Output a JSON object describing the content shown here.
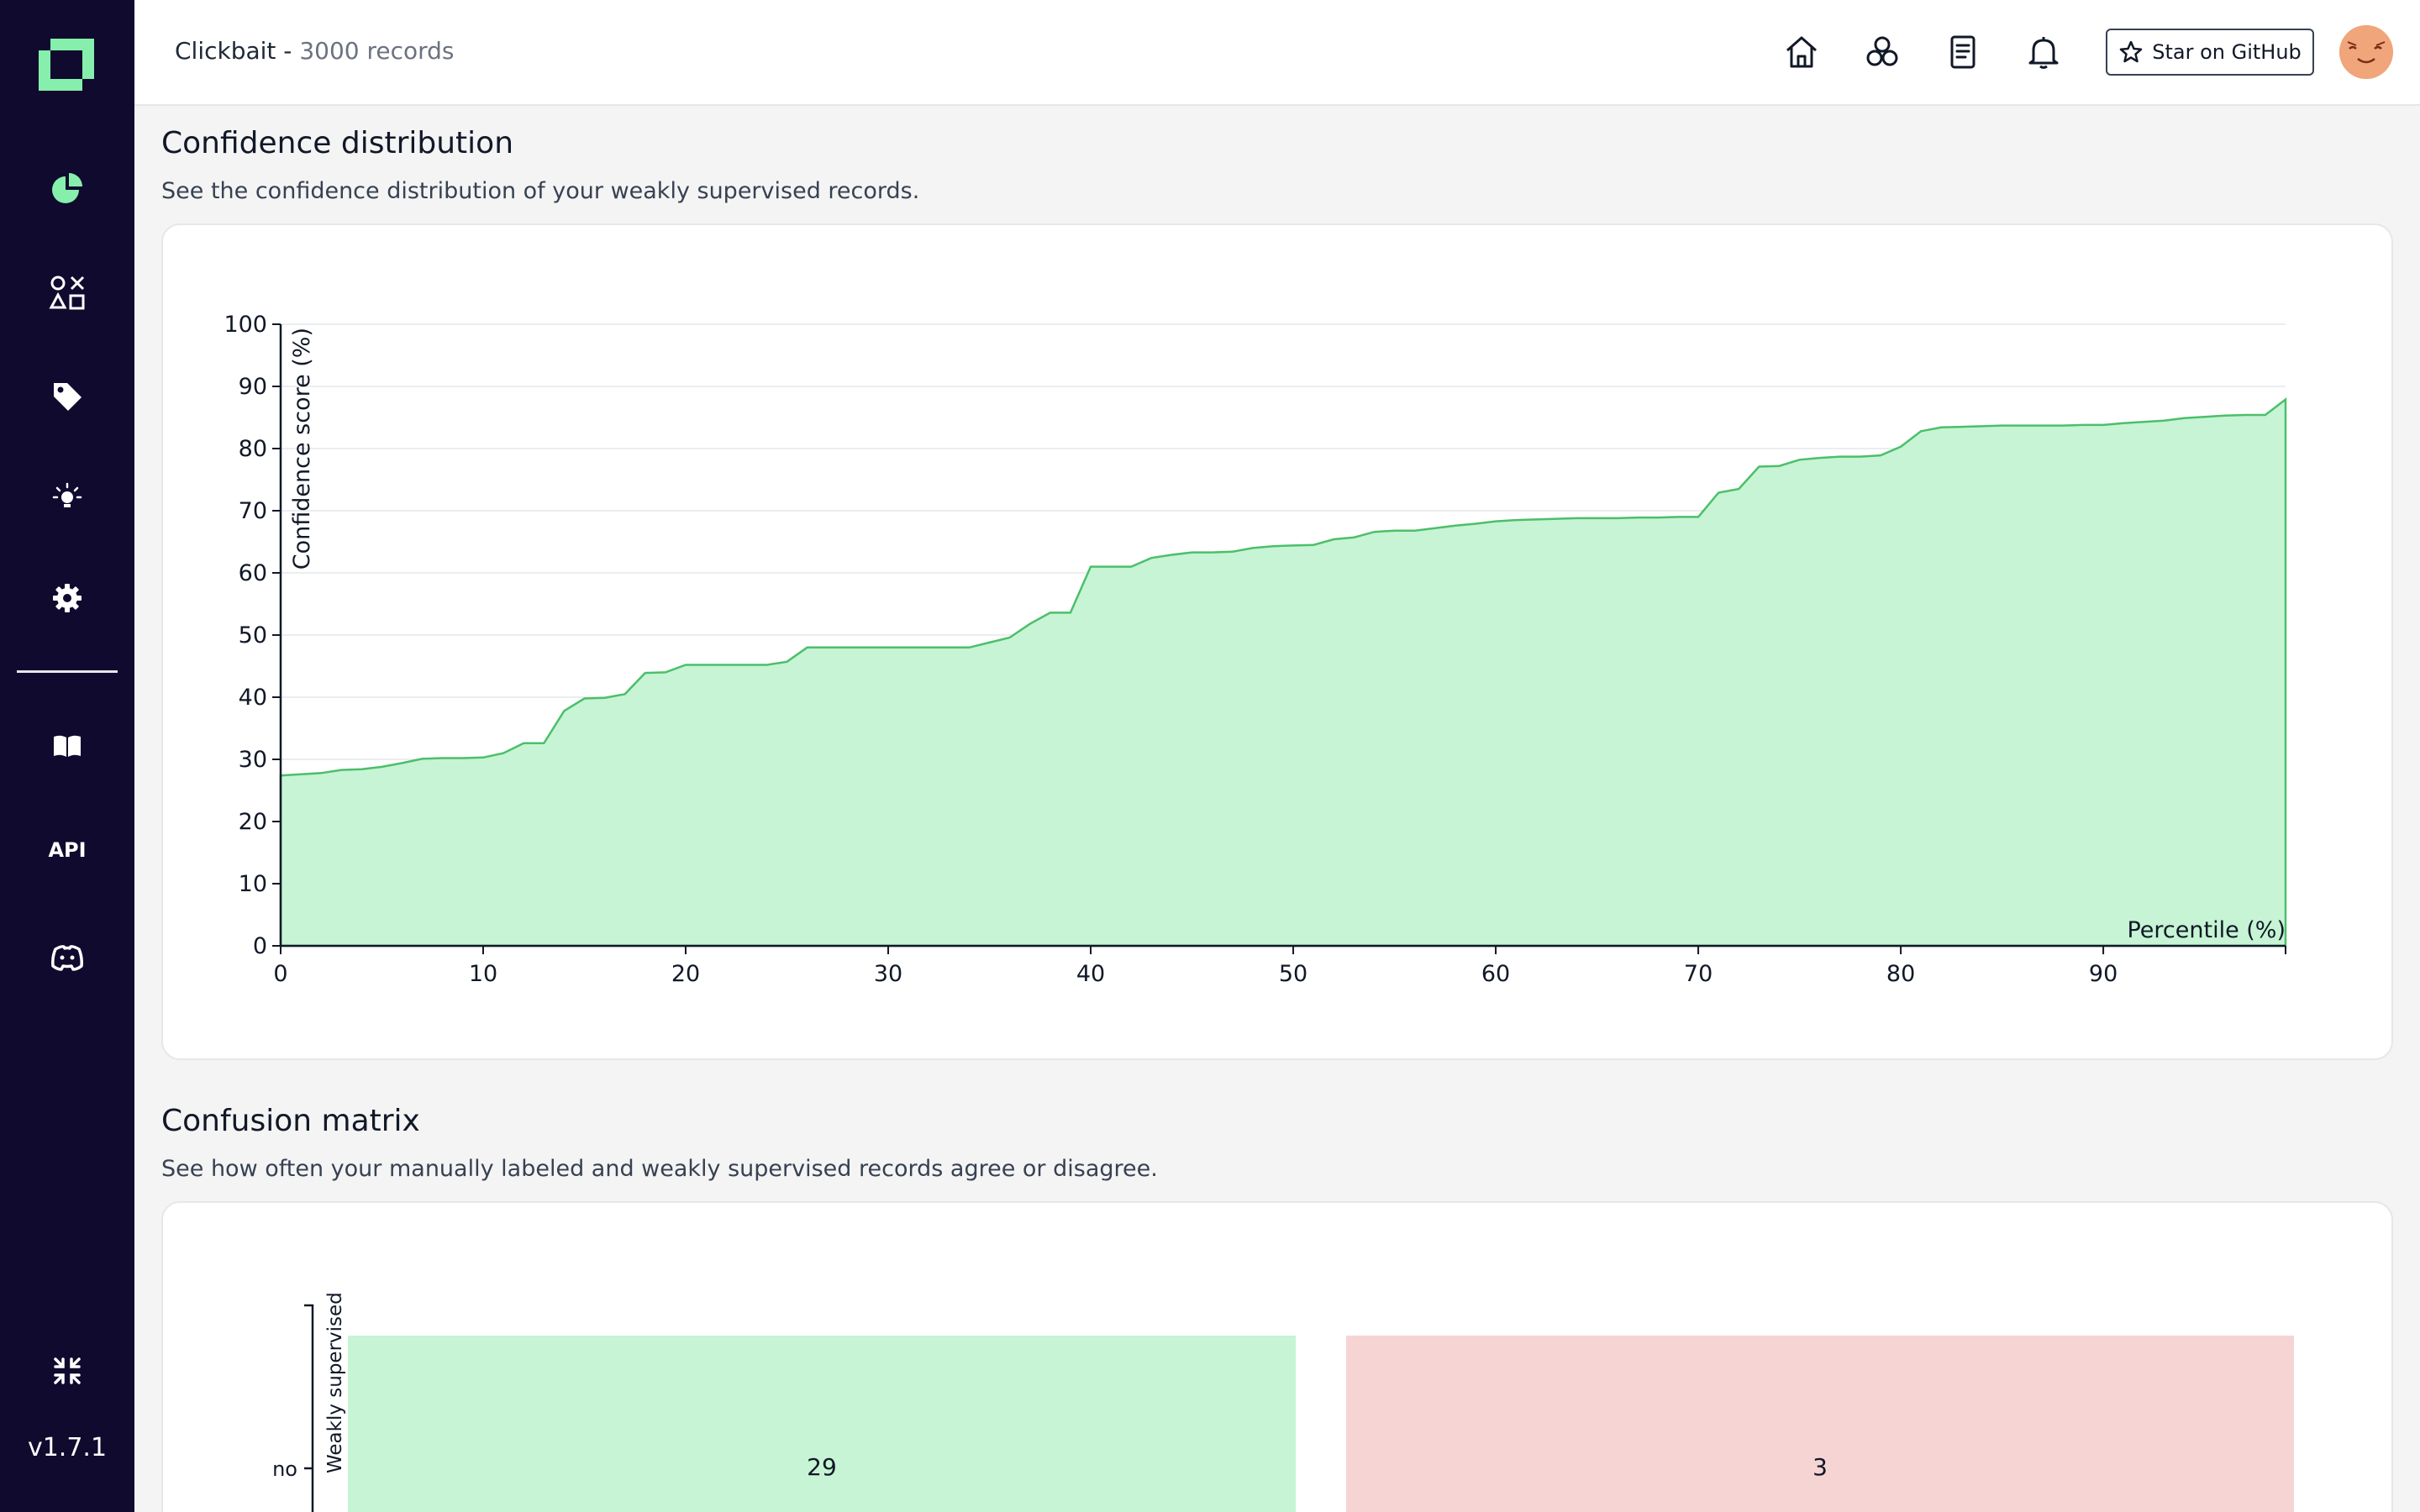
{
  "app": {
    "version": "v1.7.1",
    "colors": {
      "sidebar": "#0f0a2e",
      "accent": "#86efac",
      "area_fill": "#c6f4d4",
      "area_stroke": "#4cbf6a",
      "red_cell": "#f7d4d4"
    }
  },
  "sidebar": {
    "items": [
      {
        "name": "overview",
        "icon": "pie-chart-icon"
      },
      {
        "name": "heuristics",
        "icon": "shapes-icon"
      },
      {
        "name": "labeling",
        "icon": "tag-icon"
      },
      {
        "name": "zero-shot",
        "icon": "lightbulb-icon"
      },
      {
        "name": "settings",
        "icon": "gear-icon"
      }
    ],
    "bottom_items": [
      {
        "name": "documentation",
        "icon": "book-icon"
      },
      {
        "name": "api",
        "label": "API"
      },
      {
        "name": "discord",
        "icon": "discord-icon"
      },
      {
        "name": "minimize",
        "icon": "minimize-icon"
      }
    ]
  },
  "header": {
    "project_name": "Clickbait - ",
    "record_count": "3000 records",
    "github_label": "Star on GitHub"
  },
  "confidence": {
    "title": "Confidence distribution",
    "description": "See the confidence distribution of your weakly supervised records."
  },
  "matrix": {
    "title": "Confusion matrix",
    "description": "See how often your manually labeled and weakly supervised records agree or disagree.",
    "y_axis_label": "Weakly supervised",
    "row_label": "no",
    "cells": [
      {
        "value": "29",
        "kind": "agree"
      },
      {
        "value": "3",
        "kind": "disagree"
      }
    ]
  },
  "chart_data": {
    "type": "area",
    "title": "Confidence distribution",
    "xlabel": "Percentile (%)",
    "ylabel": "Confidence score (%)",
    "xlim": [
      0,
      99
    ],
    "ylim": [
      0,
      100
    ],
    "x_ticks": [
      0,
      10,
      20,
      30,
      40,
      50,
      60,
      70,
      80,
      90
    ],
    "y_ticks": [
      0,
      10,
      20,
      30,
      40,
      50,
      60,
      70,
      80,
      90,
      100
    ],
    "x": [
      0,
      1,
      2,
      3,
      4,
      5,
      6,
      7,
      8,
      9,
      10,
      11,
      12,
      13,
      14,
      15,
      16,
      17,
      18,
      19,
      20,
      21,
      22,
      23,
      24,
      25,
      26,
      27,
      28,
      29,
      30,
      31,
      32,
      33,
      34,
      35,
      36,
      37,
      38,
      39,
      40,
      41,
      42,
      43,
      44,
      45,
      46,
      47,
      48,
      49,
      50,
      51,
      52,
      53,
      54,
      55,
      56,
      57,
      58,
      59,
      60,
      61,
      62,
      63,
      64,
      65,
      66,
      67,
      68,
      69,
      70,
      71,
      72,
      73,
      74,
      75,
      76,
      77,
      78,
      79,
      80,
      81,
      82,
      83,
      84,
      85,
      86,
      87,
      88,
      89,
      90,
      91,
      92,
      93,
      94,
      95,
      96,
      97,
      98,
      99
    ],
    "values": [
      27.4,
      27.6,
      27.8,
      28.3,
      28.4,
      28.8,
      29.4,
      30.1,
      30.2,
      30.2,
      30.3,
      31.0,
      32.6,
      32.6,
      37.8,
      39.8,
      39.9,
      40.5,
      43.9,
      44.0,
      45.2,
      45.2,
      45.2,
      45.2,
      45.2,
      45.7,
      48.0,
      48.0,
      48.0,
      48.0,
      48.0,
      48.0,
      48.0,
      48.0,
      48.0,
      48.8,
      49.6,
      51.8,
      53.6,
      53.6,
      61.0,
      61.0,
      61.0,
      62.4,
      62.9,
      63.3,
      63.3,
      63.4,
      64.0,
      64.3,
      64.4,
      64.5,
      65.4,
      65.7,
      66.6,
      66.8,
      66.8,
      67.2,
      67.6,
      67.9,
      68.3,
      68.5,
      68.6,
      68.7,
      68.8,
      68.8,
      68.8,
      68.9,
      68.9,
      69.0,
      69.0,
      72.9,
      73.5,
      77.1,
      77.2,
      78.2,
      78.5,
      78.7,
      78.7,
      78.9,
      80.3,
      82.8,
      83.4,
      83.5,
      83.6,
      83.7,
      83.7,
      83.7,
      83.7,
      83.8,
      83.8,
      84.1,
      84.3,
      84.5,
      84.9,
      85.1,
      85.3,
      85.4,
      85.4,
      87.9
    ]
  }
}
